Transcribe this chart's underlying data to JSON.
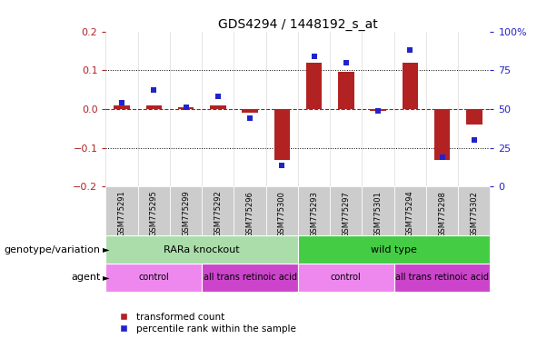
{
  "title": "GDS4294 / 1448192_s_at",
  "samples": [
    "GSM775291",
    "GSM775295",
    "GSM775299",
    "GSM775292",
    "GSM775296",
    "GSM775300",
    "GSM775293",
    "GSM775297",
    "GSM775301",
    "GSM775294",
    "GSM775298",
    "GSM775302"
  ],
  "red_values": [
    0.01,
    0.01,
    0.005,
    0.01,
    -0.01,
    -0.13,
    0.12,
    0.095,
    -0.005,
    0.12,
    -0.13,
    -0.04
  ],
  "blue_pct": [
    54,
    62,
    51,
    58,
    44,
    14,
    84,
    80,
    49,
    88,
    19,
    30
  ],
  "ylim_left": [
    -0.2,
    0.2
  ],
  "ylim_right": [
    0,
    100
  ],
  "yticks_left": [
    -0.2,
    -0.1,
    0.0,
    0.1,
    0.2
  ],
  "yticks_right": [
    0,
    25,
    50,
    75,
    100
  ],
  "ytick_labels_right": [
    "0",
    "25",
    "50",
    "75",
    "100%"
  ],
  "dotted_lines": [
    -0.1,
    0.1
  ],
  "red_color": "#b22222",
  "blue_color": "#2222cc",
  "dashed_red_color": "#dd0000",
  "genotype_groups": [
    {
      "label": "RARa knockout",
      "start": 0,
      "end": 5,
      "color": "#aaddaa"
    },
    {
      "label": "wild type",
      "start": 6,
      "end": 11,
      "color": "#44cc44"
    }
  ],
  "agent_groups": [
    {
      "label": "control",
      "start": 0,
      "end": 2,
      "color": "#ee88ee"
    },
    {
      "label": "all trans retinoic acid",
      "start": 3,
      "end": 5,
      "color": "#cc44cc"
    },
    {
      "label": "control",
      "start": 6,
      "end": 8,
      "color": "#ee88ee"
    },
    {
      "label": "all trans retinoic acid",
      "start": 9,
      "end": 11,
      "color": "#cc44cc"
    }
  ],
  "legend_red_label": "transformed count",
  "legend_blue_label": "percentile rank within the sample",
  "genotype_label": "genotype/variation",
  "agent_label": "agent",
  "bar_width": 0.5,
  "blue_marker_size": 5,
  "tick_label_bg": "#cccccc"
}
